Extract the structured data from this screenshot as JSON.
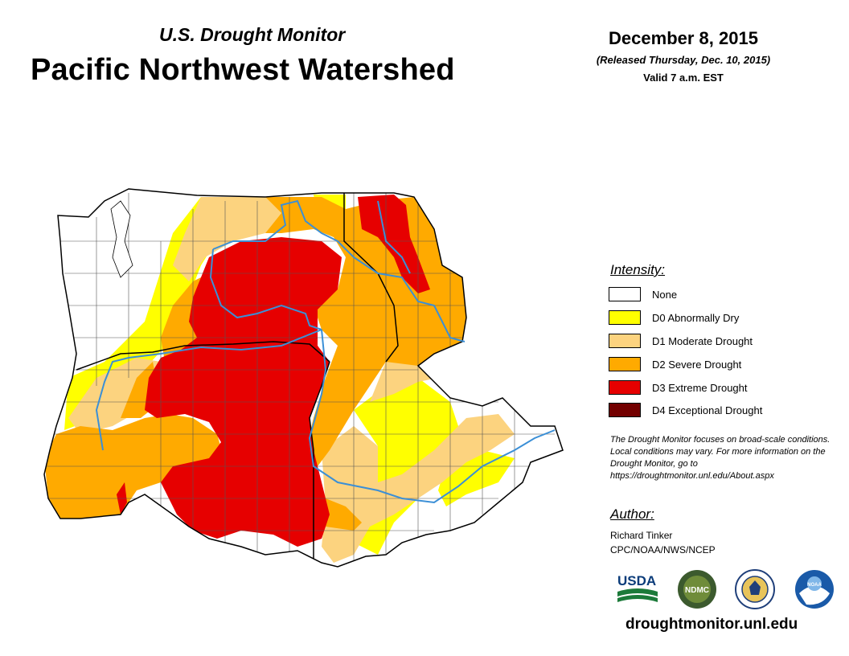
{
  "header": {
    "subtitle": "U.S. Drought Monitor",
    "title": "Pacific Northwest Watershed",
    "date": "December 8, 2015",
    "released": "(Released Thursday, Dec. 10, 2015)",
    "valid": "Valid 7 a.m. EST"
  },
  "legend": {
    "title": "Intensity:",
    "items": [
      {
        "label": "None",
        "color": "#ffffff"
      },
      {
        "label": "D0 Abnormally Dry",
        "color": "#ffff00"
      },
      {
        "label": "D1 Moderate Drought",
        "color": "#fcd37f"
      },
      {
        "label": "D2 Severe Drought",
        "color": "#ffaa00"
      },
      {
        "label": "D3 Extreme Drought",
        "color": "#e60000"
      },
      {
        "label": "D4 Exceptional Drought",
        "color": "#730000"
      }
    ]
  },
  "note": "The Drought Monitor focuses on broad-scale conditions. Local conditions may vary. For more information on the Drought Monitor, go to https://droughtmonitor.unl.edu/About.aspx",
  "author": {
    "heading": "Author:",
    "name": "Richard Tinker",
    "org": "CPC/NOAA/NWS/NCEP"
  },
  "logos": {
    "usda": "USDA",
    "ndmc": "NDMC",
    "noaa": "NOAA"
  },
  "url": "droughtmonitor.unl.edu",
  "colors": {
    "river": "#3b8fd6",
    "boundary": "#000000",
    "county": "#555555"
  }
}
